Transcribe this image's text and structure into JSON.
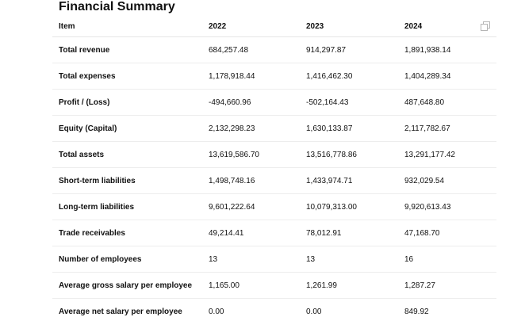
{
  "title": "Financial Summary",
  "table": {
    "columns": [
      "Item",
      "2022",
      "2023",
      "2024"
    ],
    "copy_icon": "copy-icon",
    "rows": [
      {
        "item": "Total revenue",
        "v2022": "684,257.48",
        "v2023": "914,297.87",
        "v2024": "1,891,938.14"
      },
      {
        "item": "Total expenses",
        "v2022": "1,178,918.44",
        "v2023": "1,416,462.30",
        "v2024": "1,404,289.34"
      },
      {
        "item": "Profit / (Loss)",
        "v2022": "-494,660.96",
        "v2023": "-502,164.43",
        "v2024": "487,648.80"
      },
      {
        "item": "Equity (Capital)",
        "v2022": "2,132,298.23",
        "v2023": "1,630,133.87",
        "v2024": "2,117,782.67"
      },
      {
        "item": "Total assets",
        "v2022": "13,619,586.70",
        "v2023": "13,516,778.86",
        "v2024": "13,291,177.42"
      },
      {
        "item": "Short-term liabilities",
        "v2022": "1,498,748.16",
        "v2023": "1,433,974.71",
        "v2024": "932,029.54"
      },
      {
        "item": "Long-term liabilities",
        "v2022": "9,601,222.64",
        "v2023": "10,079,313.00",
        "v2024": "9,920,613.43"
      },
      {
        "item": "Trade receivables",
        "v2022": "49,214.41",
        "v2023": "78,012.91",
        "v2024": "47,168.70"
      },
      {
        "item": "Number of employees",
        "v2022": "13",
        "v2023": "13",
        "v2024": "16"
      },
      {
        "item": "Average gross salary per employee",
        "v2022": "1,165.00",
        "v2023": "1,261.99",
        "v2024": "1,287.27"
      },
      {
        "item": "Average net salary per employee",
        "v2022": "0.00",
        "v2023": "0.00",
        "v2024": "849.92"
      }
    ]
  }
}
